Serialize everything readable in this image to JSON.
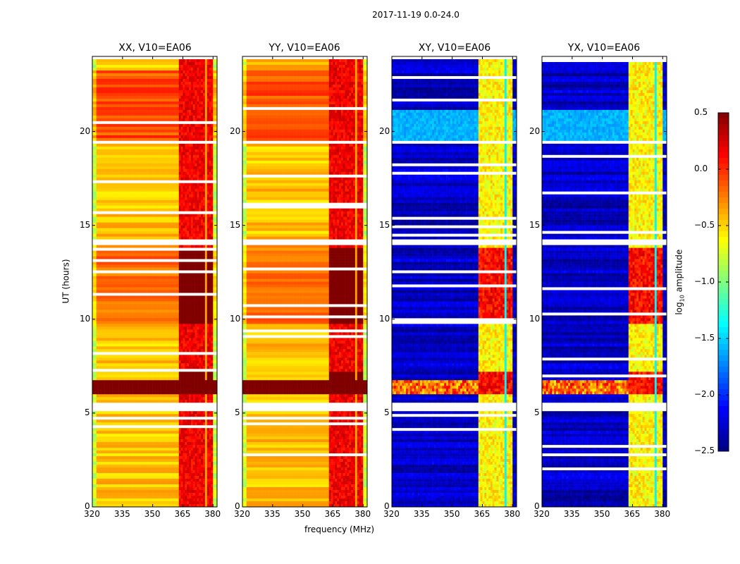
{
  "chart_data": {
    "type": "heatmap",
    "suptitle": "2017-11-19 0.0-24.0",
    "xlabel": "frequency (MHz)",
    "ylabel": "UT (hours)",
    "xlim": [
      320,
      382
    ],
    "ylim": [
      0,
      24
    ],
    "xticks": [
      320,
      335,
      350,
      365,
      380
    ],
    "yticks": [
      0,
      5,
      10,
      15,
      20
    ],
    "panels": [
      {
        "title": "XX, V10=EA06",
        "pol": "XX",
        "base_level": -0.45,
        "band_level": 0.1
      },
      {
        "title": "YY, V10=EA06",
        "pol": "YY",
        "base_level": -0.45,
        "band_level": 0.1
      },
      {
        "title": "XY, V10=EA06",
        "pol": "XY",
        "base_level": -2.3,
        "band_level": -0.7
      },
      {
        "title": "YX, V10=EA06",
        "pol": "YX",
        "base_level": -2.3,
        "band_level": -0.7
      }
    ],
    "rfi_band_mhz": [
      363,
      380
    ],
    "rfi_subbands_mhz": [
      [
        363,
        366.5
      ],
      [
        367.5,
        371.5
      ],
      [
        372.5,
        376
      ],
      [
        377,
        380
      ]
    ],
    "strong_rfi_hours": [
      [
        6.0,
        7.2
      ],
      [
        9.7,
        13.8
      ]
    ],
    "bright_band_hours_cross": [
      [
        19.5,
        21.2
      ]
    ],
    "flagged_gap_hours": [
      [
        5.1,
        5.6
      ],
      [
        14.0,
        14.3
      ],
      [
        19.3,
        19.5
      ]
    ],
    "colorbar": {
      "label": "log10 amplitude",
      "label_base": "log",
      "label_sub": "10",
      "label_rest": " amplitude",
      "min": -2.5,
      "max": 0.5,
      "ticks": [
        "0.5",
        "0.0",
        "−0.5",
        "−1.0",
        "−1.5",
        "−2.0",
        "−2.5"
      ],
      "tick_values": [
        0.5,
        0.0,
        -0.5,
        -1.0,
        -1.5,
        -2.0,
        -2.5
      ],
      "colormap": "jet"
    }
  }
}
